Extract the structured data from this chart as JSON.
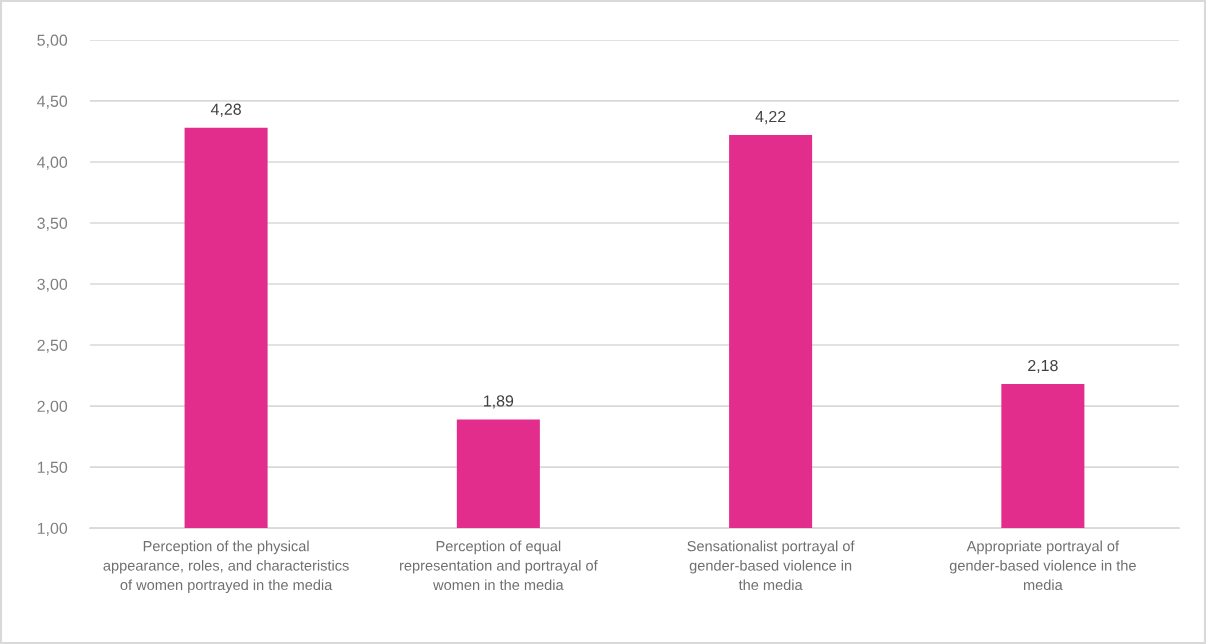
{
  "chart_data": {
    "type": "bar",
    "categories": [
      "Perception of the physical\nappearance, roles, and characteristics\nof women portrayed in the media",
      "Perception of equal\nrepresentation and portrayal of\nwomen in the media",
      "Sensationalist portrayal of\ngender-based violence in\nthe media",
      "Appropriate portrayal of\ngender-based violence in the\nmedia"
    ],
    "values": [
      4.28,
      1.89,
      4.22,
      2.18
    ],
    "value_labels": [
      "4,28",
      "1,89",
      "4,22",
      "2,18"
    ],
    "color": "#e22d8c",
    "ylim": [
      1,
      5
    ],
    "yticks": [
      {
        "value": 1,
        "label": "1,00"
      },
      {
        "value": 1.5,
        "label": "1,50"
      },
      {
        "value": 2,
        "label": "2,00"
      },
      {
        "value": 2.5,
        "label": "2,50"
      },
      {
        "value": 3,
        "label": "3,00"
      },
      {
        "value": 3.5,
        "label": "3,50"
      },
      {
        "value": 4,
        "label": "4,00"
      },
      {
        "value": 4.5,
        "label": "4,50"
      },
      {
        "value": 5,
        "label": "5,00"
      }
    ],
    "grid": "y"
  }
}
